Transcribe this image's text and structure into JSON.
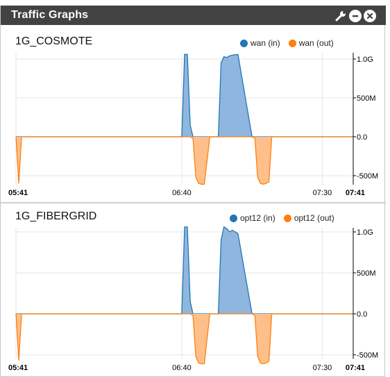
{
  "widget": {
    "title": "Traffic Graphs",
    "icons": [
      "wrench-icon",
      "minimize-icon",
      "close-icon"
    ]
  },
  "colors": {
    "header_bg": "#424242",
    "in": "#1f77b4",
    "out": "#ff7f0e",
    "in_fill": "#8fb6de",
    "out_fill": "#ffbf8a"
  },
  "graphs": [
    {
      "title": "1G_COSMOTE",
      "legend": [
        "wan (in)",
        "wan (out)"
      ]
    },
    {
      "title": "1G_FIBERGRID",
      "legend": [
        "opt12 (in)",
        "opt12 (out)"
      ]
    }
  ],
  "chart_data": [
    {
      "type": "area",
      "title": "1G_COSMOTE",
      "x_ticks": [
        "05:41",
        "06:40",
        "07:30",
        "07:41"
      ],
      "y_ticks": [
        "1.0G",
        "500M",
        "0.0",
        "-500M"
      ],
      "ylim": [
        -600,
        1100
      ],
      "y_unit": "M",
      "x": [
        "05:41",
        "05:42",
        "05:43",
        "05:44",
        "05:45",
        "05:50",
        "06:00",
        "06:10",
        "06:20",
        "06:30",
        "06:40",
        "06:41",
        "06:42",
        "06:43",
        "06:44",
        "06:45",
        "06:46",
        "06:47",
        "06:48",
        "06:50",
        "06:53",
        "06:54",
        "06:55",
        "06:56",
        "06:57",
        "06:58",
        "07:00",
        "07:05",
        "07:06",
        "07:07",
        "07:08",
        "07:09",
        "07:10",
        "07:11",
        "07:12",
        "07:15",
        "07:20",
        "07:30",
        "07:41"
      ],
      "series": [
        {
          "name": "wan (in)",
          "values": [
            0,
            0,
            0,
            0,
            0,
            0,
            0,
            0,
            0,
            0,
            0,
            1060,
            1060,
            150,
            0,
            0,
            0,
            0,
            0,
            0,
            0,
            950,
            1030,
            1020,
            1040,
            1050,
            1060,
            0,
            0,
            0,
            0,
            0,
            0,
            0,
            0,
            0,
            0,
            0,
            0
          ]
        },
        {
          "name": "wan (out)",
          "values": [
            0,
            -600,
            0,
            0,
            0,
            0,
            0,
            0,
            0,
            0,
            0,
            0,
            0,
            0,
            -20,
            -520,
            -600,
            -610,
            -610,
            0,
            0,
            0,
            0,
            0,
            0,
            0,
            0,
            0,
            -20,
            -520,
            -600,
            -610,
            -600,
            -580,
            0,
            0,
            0,
            0,
            0
          ]
        }
      ]
    },
    {
      "type": "area",
      "title": "1G_FIBERGRID",
      "x_ticks": [
        "05:41",
        "06:40",
        "07:30",
        "07:41"
      ],
      "y_ticks": [
        "1.0G",
        "500M",
        "0.0",
        "-500M"
      ],
      "ylim": [
        -600,
        1100
      ],
      "y_unit": "M",
      "x": [
        "05:41",
        "05:42",
        "05:43",
        "05:44",
        "05:45",
        "05:50",
        "06:00",
        "06:10",
        "06:20",
        "06:30",
        "06:40",
        "06:41",
        "06:42",
        "06:43",
        "06:44",
        "06:45",
        "06:46",
        "06:47",
        "06:48",
        "06:50",
        "06:53",
        "06:54",
        "06:55",
        "06:56",
        "06:57",
        "06:58",
        "07:00",
        "07:05",
        "07:06",
        "07:07",
        "07:08",
        "07:09",
        "07:10",
        "07:11",
        "07:12",
        "07:15",
        "07:20",
        "07:30",
        "07:41"
      ],
      "series": [
        {
          "name": "opt12 (in)",
          "values": [
            0,
            0,
            0,
            0,
            0,
            0,
            0,
            0,
            0,
            0,
            0,
            1060,
            1060,
            150,
            0,
            0,
            0,
            0,
            0,
            0,
            0,
            900,
            1060,
            1040,
            1000,
            1020,
            980,
            0,
            0,
            0,
            0,
            0,
            0,
            0,
            0,
            0,
            0,
            0,
            0
          ]
        },
        {
          "name": "opt12 (out)",
          "values": [
            0,
            -570,
            0,
            0,
            0,
            0,
            0,
            0,
            0,
            0,
            0,
            0,
            0,
            0,
            -20,
            -520,
            -600,
            -610,
            -610,
            0,
            0,
            0,
            0,
            0,
            0,
            0,
            0,
            0,
            -20,
            -520,
            -600,
            -610,
            -600,
            -580,
            0,
            0,
            0,
            0,
            0
          ]
        }
      ]
    }
  ]
}
